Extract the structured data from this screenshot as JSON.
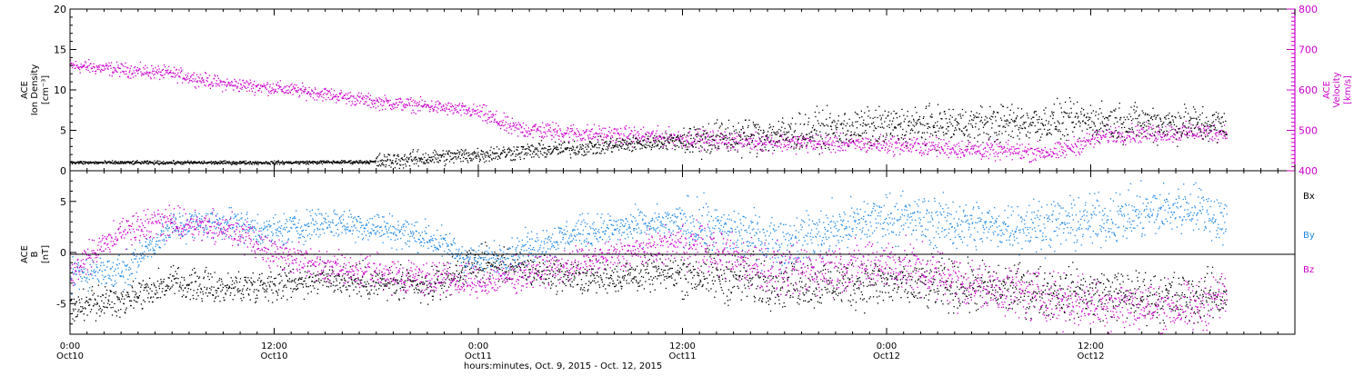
{
  "colors": {
    "density": "#000000",
    "velocity": "#cc00cc",
    "bx": "#000000",
    "by": "#1e88e5",
    "bz": "#cc00cc"
  },
  "chart_data": [
    {
      "type": "scatter",
      "panel": "plasma",
      "ylabel_lines": [
        "ACE",
        "Ion Density",
        "[cm⁻³]"
      ],
      "ylim": [
        0,
        20
      ],
      "yticks": [
        "0",
        "5",
        "10",
        "15",
        "20"
      ],
      "y2label_lines": [
        "ACE",
        "Velocity",
        "[km/s]"
      ],
      "y2lim": [
        400,
        800
      ],
      "y2ticks": [
        "400",
        "500",
        "600",
        "700",
        "800"
      ],
      "x_hours_range": [
        0,
        72
      ],
      "series": [
        {
          "axis": "left",
          "color_key": "density",
          "trend_hours": [
            0,
            6,
            12,
            18,
            24,
            30,
            36,
            42,
            44,
            48,
            54,
            60,
            66,
            68
          ],
          "trend_values": [
            1,
            1,
            1,
            1.1,
            2,
            2.8,
            3.8,
            4.5,
            5,
            5.5,
            5.8,
            6.2,
            5.8,
            5.5
          ]
        },
        {
          "axis": "right",
          "color_key": "velocity",
          "trend_hours": [
            0,
            3,
            6,
            9,
            12,
            15,
            18,
            21,
            24,
            26,
            30,
            36,
            42,
            48,
            54,
            58,
            61,
            66,
            68
          ],
          "trend_values": [
            660,
            650,
            640,
            615,
            605,
            590,
            570,
            560,
            545,
            505,
            492,
            480,
            470,
            465,
            450,
            445,
            490,
            495,
            495
          ]
        }
      ]
    },
    {
      "type": "scatter",
      "panel": "magnetic",
      "ylabel_lines": [
        "ACE",
        "B",
        "[nT]"
      ],
      "ylim": [
        -8,
        8
      ],
      "yticks": [
        "-5",
        "0",
        "5"
      ],
      "zero_line": true,
      "legend": [
        "Bx",
        "By",
        "Bz"
      ],
      "series": [
        {
          "name": "Bx",
          "color_key": "bx",
          "trend_hours": [
            0,
            3,
            6,
            9,
            12,
            15,
            18,
            21,
            24,
            30,
            36,
            42,
            48,
            54,
            60,
            66,
            68
          ],
          "trend_values": [
            -5.5,
            -4.5,
            -3,
            -3.5,
            -3,
            -2.5,
            -3,
            -3.5,
            -1,
            -2.5,
            -2,
            -3,
            -3,
            -3.5,
            -4,
            -4.5,
            -4
          ]
        },
        {
          "name": "By",
          "color_key": "by",
          "trend_hours": [
            0,
            3,
            6,
            9,
            12,
            15,
            18,
            21,
            24,
            30,
            36,
            42,
            48,
            54,
            60,
            66,
            68
          ],
          "trend_values": [
            -2,
            -2,
            2.5,
            3,
            2,
            3,
            2.5,
            1.5,
            -1,
            2,
            3,
            1,
            3.5,
            2.5,
            3,
            4.5,
            3
          ]
        },
        {
          "name": "Bz",
          "color_key": "bz",
          "trend_hours": [
            0,
            3,
            6,
            9,
            12,
            15,
            18,
            21,
            24,
            30,
            36,
            42,
            48,
            54,
            60,
            66,
            68
          ],
          "trend_values": [
            -2,
            2,
            3,
            2.5,
            0,
            -1.5,
            -2,
            -2.5,
            -3,
            -1,
            1,
            -2,
            -1,
            -3.5,
            -5,
            -5.5,
            -4
          ]
        }
      ]
    }
  ],
  "x_axis": {
    "hour_ticks": [
      0,
      12,
      24,
      36,
      48,
      60
    ],
    "time_labels": [
      "0:00",
      "12:00",
      "0:00",
      "12:00",
      "0:00",
      "12:00"
    ],
    "date_labels": [
      "Oct10",
      "Oct10",
      "Oct11",
      "Oct11",
      "Oct12",
      "Oct12"
    ],
    "axis_end_hours": 72,
    "minor_tick_hours": 1,
    "title": "hours:minutes, Oct.  9, 2015 - Oct. 12, 2015"
  }
}
